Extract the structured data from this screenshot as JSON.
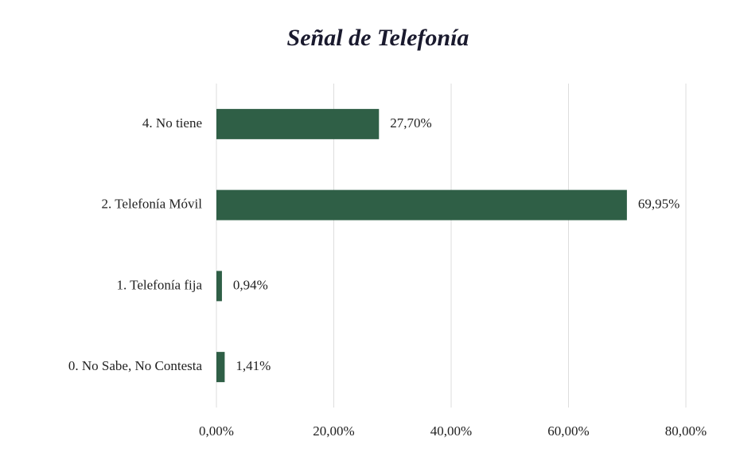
{
  "chart_data": {
    "type": "hbar",
    "title": "Señal de Telefonía",
    "categories": [
      "4. No tiene",
      "2. Telefonía Móvil",
      "1. Telefonía fija",
      "0. No Sabe, No Contesta"
    ],
    "values": [
      27.7,
      69.95,
      0.94,
      1.41
    ],
    "value_labels": [
      "27,70%",
      "69,95%",
      "0,94%",
      "1,41%"
    ],
    "color": "#2f5f46",
    "xlim": [
      0,
      80
    ],
    "xticks": [
      {
        "value": 0,
        "label": "0,00%"
      },
      {
        "value": 20,
        "label": "20,00%"
      },
      {
        "value": 40,
        "label": "40,00%"
      },
      {
        "value": 60,
        "label": "60,00%"
      },
      {
        "value": 80,
        "label": "80,00%"
      }
    ],
    "grid": true
  }
}
